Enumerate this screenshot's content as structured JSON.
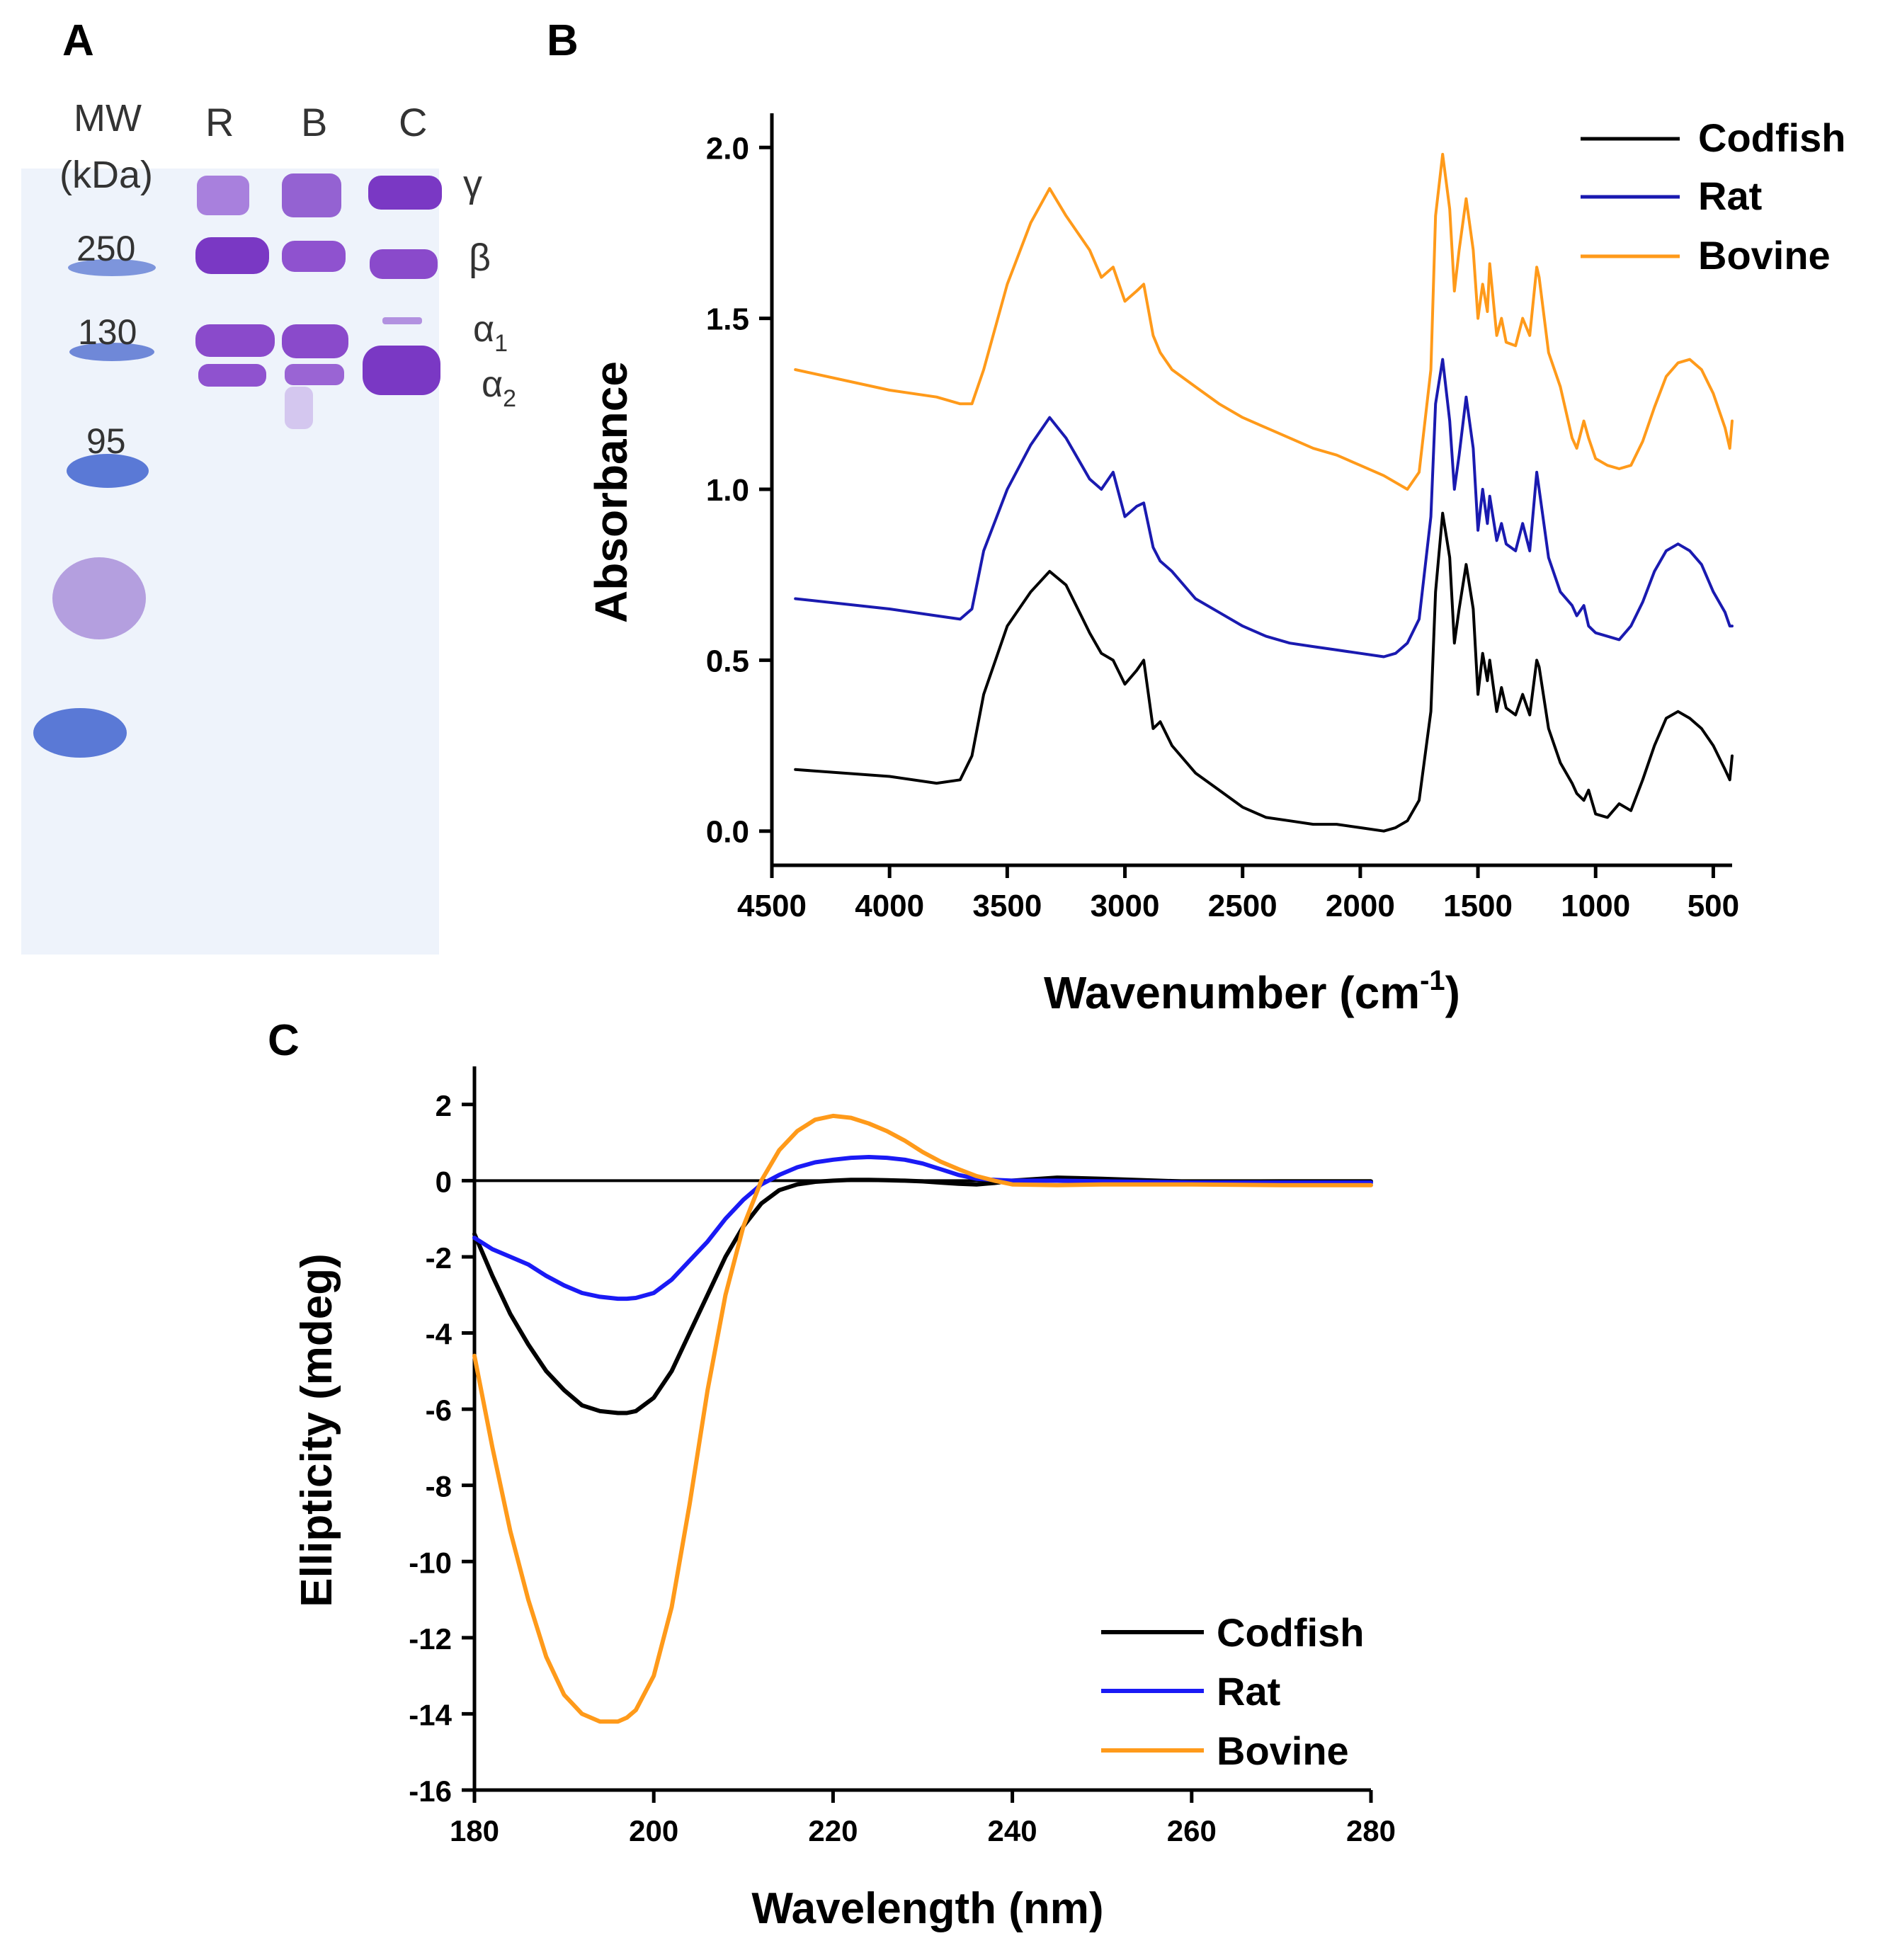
{
  "panels": {
    "a": {
      "letter": "A"
    },
    "b": {
      "letter": "B"
    },
    "c": {
      "letter": "C"
    }
  },
  "gel": {
    "mw_header": "MW",
    "kda_header": "(kDa)",
    "lanes": [
      "R",
      "B",
      "C"
    ],
    "markers": [
      "250",
      "130",
      "95"
    ],
    "bands": {
      "gamma": "γ",
      "beta": "β",
      "alpha1_base": "α",
      "alpha1_sub": "1",
      "alpha2_base": "α",
      "alpha2_sub": "2"
    },
    "colors": {
      "background": "#eef3fb",
      "marker": "#5a79d6",
      "band": "#7a38c4",
      "band_light": "#a880dd"
    }
  },
  "chart_data": [
    {
      "type": "line",
      "title": "",
      "xlabel": "Wavenumber (cm",
      "xlabel_sup": "-1",
      "xlabel_close": ")",
      "ylabel": "Absorbance",
      "xlim": [
        4500,
        420
      ],
      "ylim": [
        -0.1,
        2.1
      ],
      "xticks": [
        "4500",
        "4000",
        "3500",
        "3000",
        "2500",
        "2000",
        "1500",
        "1000",
        "500"
      ],
      "xtick_values": [
        4500,
        4000,
        3500,
        3000,
        2500,
        2000,
        1500,
        1000,
        500
      ],
      "yticks": [
        "0.0",
        "0.5",
        "1.0",
        "1.5",
        "2.0"
      ],
      "ytick_values": [
        0.0,
        0.5,
        1.0,
        1.5,
        2.0
      ],
      "legend": {
        "position": "top-right"
      },
      "x": [
        4400,
        4000,
        3800,
        3700,
        3650,
        3600,
        3500,
        3400,
        3320,
        3250,
        3150,
        3100,
        3050,
        3000,
        2950,
        2920,
        2880,
        2850,
        2800,
        2700,
        2600,
        2500,
        2400,
        2300,
        2200,
        2100,
        2000,
        1900,
        1850,
        1800,
        1750,
        1700,
        1680,
        1650,
        1620,
        1600,
        1580,
        1550,
        1520,
        1500,
        1480,
        1460,
        1450,
        1420,
        1400,
        1380,
        1340,
        1310,
        1280,
        1250,
        1240,
        1200,
        1150,
        1100,
        1080,
        1050,
        1030,
        1000,
        950,
        900,
        850,
        800,
        750,
        700,
        650,
        600,
        550,
        500,
        450,
        430,
        420
      ],
      "series": [
        {
          "name": "Codfish",
          "color": "#000000",
          "values": [
            0.18,
            0.16,
            0.14,
            0.15,
            0.22,
            0.4,
            0.6,
            0.7,
            0.76,
            0.72,
            0.58,
            0.52,
            0.5,
            0.43,
            0.47,
            0.5,
            0.3,
            0.32,
            0.25,
            0.17,
            0.12,
            0.07,
            0.04,
            0.03,
            0.02,
            0.02,
            0.01,
            0.0,
            0.01,
            0.03,
            0.09,
            0.35,
            0.7,
            0.93,
            0.8,
            0.55,
            0.65,
            0.78,
            0.65,
            0.4,
            0.52,
            0.44,
            0.5,
            0.35,
            0.42,
            0.36,
            0.34,
            0.4,
            0.34,
            0.5,
            0.48,
            0.3,
            0.2,
            0.14,
            0.11,
            0.09,
            0.12,
            0.05,
            0.04,
            0.08,
            0.06,
            0.15,
            0.25,
            0.33,
            0.35,
            0.33,
            0.3,
            0.25,
            0.18,
            0.15,
            0.22
          ]
        },
        {
          "name": "Rat",
          "color": "#1a1ab0",
          "values": [
            0.68,
            0.65,
            0.63,
            0.62,
            0.65,
            0.82,
            1.0,
            1.13,
            1.21,
            1.15,
            1.03,
            1.0,
            1.05,
            0.92,
            0.95,
            0.96,
            0.83,
            0.79,
            0.76,
            0.68,
            0.64,
            0.6,
            0.57,
            0.55,
            0.54,
            0.53,
            0.52,
            0.51,
            0.52,
            0.55,
            0.62,
            0.92,
            1.25,
            1.38,
            1.2,
            1.0,
            1.1,
            1.27,
            1.12,
            0.88,
            1.0,
            0.9,
            0.98,
            0.85,
            0.9,
            0.84,
            0.82,
            0.9,
            0.82,
            1.05,
            1.0,
            0.8,
            0.7,
            0.66,
            0.63,
            0.66,
            0.6,
            0.58,
            0.57,
            0.56,
            0.6,
            0.67,
            0.76,
            0.82,
            0.84,
            0.82,
            0.78,
            0.7,
            0.64,
            0.6,
            0.6
          ]
        },
        {
          "name": "Bovine",
          "color": "#ff9a1a",
          "values": [
            1.35,
            1.29,
            1.27,
            1.25,
            1.25,
            1.35,
            1.6,
            1.78,
            1.88,
            1.8,
            1.7,
            1.62,
            1.65,
            1.55,
            1.58,
            1.6,
            1.45,
            1.4,
            1.35,
            1.3,
            1.25,
            1.21,
            1.18,
            1.15,
            1.12,
            1.1,
            1.07,
            1.04,
            1.02,
            1.0,
            1.05,
            1.35,
            1.8,
            1.98,
            1.82,
            1.58,
            1.7,
            1.85,
            1.7,
            1.5,
            1.6,
            1.52,
            1.66,
            1.45,
            1.5,
            1.43,
            1.42,
            1.5,
            1.45,
            1.65,
            1.62,
            1.4,
            1.3,
            1.15,
            1.12,
            1.2,
            1.15,
            1.09,
            1.07,
            1.06,
            1.07,
            1.14,
            1.24,
            1.33,
            1.37,
            1.38,
            1.35,
            1.28,
            1.18,
            1.12,
            1.2
          ]
        }
      ]
    },
    {
      "type": "line",
      "title": "",
      "xlabel": "Wavelength (nm)",
      "ylabel": "Ellipticity (mdeg)",
      "xlim": [
        180,
        280
      ],
      "ylim": [
        -16,
        3
      ],
      "xticks": [
        "180",
        "200",
        "220",
        "240",
        "260",
        "280"
      ],
      "xtick_values": [
        180,
        200,
        220,
        240,
        260,
        280
      ],
      "yticks": [
        "2",
        "0",
        "-2",
        "-4",
        "-6",
        "-8",
        "-10",
        "-12",
        "-14",
        "-16"
      ],
      "ytick_values": [
        2,
        0,
        -2,
        -4,
        -6,
        -8,
        -10,
        -12,
        -14,
        -16
      ],
      "zero_line": true,
      "legend": {
        "position": "bottom-right"
      },
      "x": [
        180,
        182,
        184,
        186,
        188,
        190,
        192,
        194,
        196,
        197,
        198,
        200,
        202,
        204,
        206,
        208,
        210,
        212,
        214,
        216,
        218,
        220,
        222,
        224,
        226,
        228,
        230,
        232,
        234,
        236,
        238,
        240,
        245,
        250,
        260,
        270,
        280
      ],
      "series": [
        {
          "name": "Codfish",
          "color": "#000000",
          "values": [
            -1.4,
            -2.5,
            -3.5,
            -4.3,
            -5.0,
            -5.5,
            -5.9,
            -6.05,
            -6.1,
            -6.1,
            -6.05,
            -5.7,
            -5.0,
            -4.0,
            -3.0,
            -2.0,
            -1.2,
            -0.6,
            -0.25,
            -0.1,
            -0.03,
            0.0,
            0.02,
            0.02,
            0.01,
            0.0,
            -0.02,
            -0.05,
            -0.08,
            -0.1,
            -0.06,
            0.0,
            0.08,
            0.05,
            -0.03,
            -0.02,
            -0.02
          ]
        },
        {
          "name": "Rat",
          "color": "#1a1af5",
          "values": [
            -1.5,
            -1.8,
            -2.0,
            -2.2,
            -2.5,
            -2.75,
            -2.95,
            -3.05,
            -3.1,
            -3.1,
            -3.08,
            -2.95,
            -2.6,
            -2.1,
            -1.6,
            -1.0,
            -0.5,
            -0.1,
            0.15,
            0.35,
            0.48,
            0.55,
            0.6,
            0.62,
            0.6,
            0.55,
            0.45,
            0.3,
            0.15,
            0.05,
            0.02,
            0.0,
            0.0,
            -0.02,
            -0.05,
            -0.05,
            -0.05
          ]
        },
        {
          "name": "Bovine",
          "color": "#ff9a1a",
          "values": [
            -4.6,
            -7.0,
            -9.2,
            -11.0,
            -12.5,
            -13.5,
            -14.0,
            -14.2,
            -14.2,
            -14.1,
            -13.9,
            -13.0,
            -11.2,
            -8.5,
            -5.5,
            -3.0,
            -1.2,
            0.0,
            0.8,
            1.3,
            1.6,
            1.7,
            1.65,
            1.5,
            1.3,
            1.05,
            0.75,
            0.5,
            0.3,
            0.12,
            0.0,
            -0.1,
            -0.12,
            -0.1,
            -0.1,
            -0.12,
            -0.12
          ]
        }
      ]
    }
  ]
}
